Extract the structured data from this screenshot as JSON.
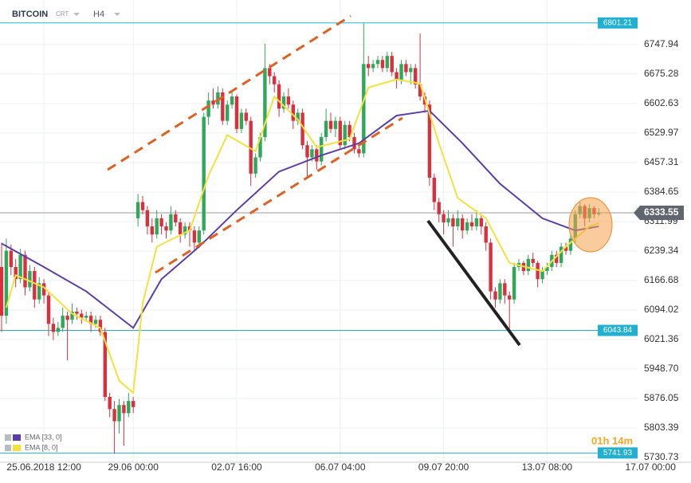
{
  "header": {
    "symbol": "BITCOIN",
    "type": "CRT",
    "timeframe": "H4"
  },
  "timer": "01h 14m",
  "chart_data": {
    "type": "candlestick",
    "xlim": [
      0,
      135.25
    ],
    "xticks": [
      {
        "value": 9,
        "label": "25.06.2018 12:00"
      },
      {
        "value": 28,
        "label": "29.06 00:00"
      },
      {
        "value": 50,
        "label": "02.07 16:00"
      },
      {
        "value": 72,
        "label": "06.07 04:00"
      },
      {
        "value": 94,
        "label": "09.07 20:00"
      },
      {
        "value": 116,
        "label": "13.07 08:00"
      },
      {
        "value": 138,
        "label": "17.07 00:00"
      }
    ],
    "ylim": [
      5719,
      6842
    ],
    "yticks": [
      6747.94,
      6675.28,
      6602.63,
      6529.97,
      6457.31,
      6384.65,
      6311.99,
      6239.34,
      6166.68,
      6094.02,
      6021.36,
      {
        "value": 5948.7,
        "label": "5948.70"
      },
      5876.05,
      5803.39,
      5730.73
    ],
    "grid": true,
    "up_color": "#2fa85a",
    "down_color": "#d9303e",
    "candles": [
      [
        6200,
        6260,
        6040,
        6080
      ],
      [
        6080,
        6270,
        6060,
        6240
      ],
      [
        6240,
        6255,
        6180,
        6200
      ],
      [
        6200,
        6220,
        6150,
        6170
      ],
      [
        6170,
        6245,
        6160,
        6230
      ],
      [
        6230,
        6240,
        6130,
        6150
      ],
      [
        6150,
        6205,
        6140,
        6190
      ],
      [
        6190,
        6200,
        6100,
        6120
      ],
      [
        6120,
        6175,
        6110,
        6160
      ],
      [
        6160,
        6170,
        6110,
        6130
      ],
      [
        6130,
        6140,
        6030,
        6060
      ],
      [
        6060,
        6075,
        6020,
        6040
      ],
      [
        6040,
        6065,
        6030,
        6050
      ],
      [
        6050,
        6100,
        6040,
        6080
      ],
      [
        6080,
        6090,
        5970,
        6070
      ],
      [
        6070,
        6110,
        6060,
        6090
      ],
      [
        6090,
        6100,
        6070,
        6085
      ],
      [
        6085,
        6095,
        6060,
        6075
      ],
      [
        6075,
        6090,
        6065,
        6080
      ],
      [
        6080,
        6090,
        6040,
        6060
      ],
      [
        6060,
        6080,
        6050,
        6070
      ],
      [
        6070,
        6080,
        6030,
        6040
      ],
      [
        6040,
        6050,
        5870,
        5880
      ],
      [
        5880,
        5890,
        5830,
        5850
      ],
      [
        5850,
        5870,
        5740,
        5820
      ],
      [
        5820,
        5875,
        5790,
        5860
      ],
      [
        5860,
        5870,
        5760,
        5840
      ],
      [
        5840,
        5890,
        5830,
        5870
      ],
      [
        5870,
        5880,
        5840,
        5855
      ],
      [
        6320,
        6380,
        6300,
        6360
      ],
      [
        6360,
        6375,
        6330,
        6340
      ],
      [
        6340,
        6350,
        6280,
        6300
      ],
      [
        6300,
        6320,
        6260,
        6280
      ],
      [
        6280,
        6340,
        6270,
        6320
      ],
      [
        6320,
        6330,
        6280,
        6300
      ],
      [
        6300,
        6310,
        6270,
        6290
      ],
      [
        6290,
        6350,
        6280,
        6330
      ],
      [
        6330,
        6340,
        6300,
        6310
      ],
      [
        6310,
        6320,
        6260,
        6280
      ],
      [
        6280,
        6310,
        6270,
        6300
      ],
      [
        6300,
        6310,
        6250,
        6290
      ],
      [
        6290,
        6300,
        6240,
        6260
      ],
      [
        6260,
        6300,
        6250,
        6290
      ],
      [
        6290,
        6580,
        6280,
        6570
      ],
      [
        6570,
        6630,
        6550,
        6610
      ],
      [
        6610,
        6640,
        6590,
        6600
      ],
      [
        6600,
        6645,
        6590,
        6630
      ],
      [
        6630,
        6640,
        6550,
        6560
      ],
      [
        6560,
        6610,
        6550,
        6600
      ],
      [
        6600,
        6630,
        6590,
        6620
      ],
      [
        6620,
        6625,
        6530,
        6540
      ],
      [
        6540,
        6590,
        6530,
        6580
      ],
      [
        6580,
        6590,
        6550,
        6560
      ],
      [
        6560,
        6570,
        6400,
        6430
      ],
      [
        6430,
        6480,
        6420,
        6470
      ],
      [
        6470,
        6530,
        6460,
        6520
      ],
      [
        6520,
        6750,
        6510,
        6690
      ],
      [
        6690,
        6700,
        6650,
        6670
      ],
      [
        6670,
        6680,
        6630,
        6650
      ],
      [
        6650,
        6660,
        6570,
        6590
      ],
      [
        6590,
        6630,
        6580,
        6620
      ],
      [
        6620,
        6640,
        6590,
        6600
      ],
      [
        6600,
        6610,
        6540,
        6560
      ],
      [
        6560,
        6590,
        6550,
        6580
      ],
      [
        6580,
        6590,
        6490,
        6500
      ],
      [
        6500,
        6510,
        6420,
        6470
      ],
      [
        6470,
        6500,
        6460,
        6490
      ],
      [
        6490,
        6500,
        6440,
        6460
      ],
      [
        6460,
        6530,
        6450,
        6520
      ],
      [
        6520,
        6590,
        6510,
        6560
      ],
      [
        6560,
        6580,
        6530,
        6540
      ],
      [
        6540,
        6570,
        6520,
        6560
      ],
      [
        6560,
        6570,
        6490,
        6500
      ],
      [
        6500,
        6560,
        6490,
        6550
      ],
      [
        6550,
        6560,
        6510,
        6520
      ],
      [
        6520,
        6530,
        6480,
        6490
      ],
      [
        6490,
        6500,
        6470,
        6480
      ],
      [
        6480,
        6800,
        6470,
        6700
      ],
      [
        6700,
        6720,
        6670,
        6690
      ],
      [
        6690,
        6710,
        6680,
        6700
      ],
      [
        6700,
        6720,
        6690,
        6710
      ],
      [
        6710,
        6720,
        6680,
        6690
      ],
      [
        6690,
        6730,
        6680,
        6720
      ],
      [
        6720,
        6730,
        6670,
        6680
      ],
      [
        6680,
        6690,
        6640,
        6660
      ],
      [
        6660,
        6710,
        6650,
        6700
      ],
      [
        6700,
        6710,
        6670,
        6680
      ],
      [
        6680,
        6700,
        6650,
        6690
      ],
      [
        6690,
        6700,
        6640,
        6650
      ],
      [
        6650,
        6775,
        6610,
        6620
      ],
      [
        6620,
        6630,
        6580,
        6600
      ],
      [
        6600,
        6610,
        6400,
        6420
      ],
      [
        6420,
        6430,
        6340,
        6360
      ],
      [
        6360,
        6370,
        6310,
        6330
      ],
      [
        6330,
        6340,
        6280,
        6310
      ],
      [
        6310,
        6340,
        6300,
        6320
      ],
      [
        6320,
        6330,
        6250,
        6300
      ],
      [
        6300,
        6340,
        6290,
        6320
      ],
      [
        6320,
        6330,
        6270,
        6290
      ],
      [
        6290,
        6320,
        6280,
        6310
      ],
      [
        6310,
        6330,
        6290,
        6300
      ],
      [
        6300,
        6340,
        6290,
        6320
      ],
      [
        6320,
        6330,
        6280,
        6300
      ],
      [
        6300,
        6310,
        6240,
        6260
      ],
      [
        6260,
        6270,
        6120,
        6140
      ],
      [
        6140,
        6150,
        6100,
        6120
      ],
      [
        6120,
        6170,
        6110,
        6160
      ],
      [
        6160,
        6170,
        6110,
        6130
      ],
      [
        6130,
        6140,
        6040,
        6120
      ],
      [
        6120,
        6210,
        6110,
        6200
      ],
      [
        6200,
        6220,
        6190,
        6210
      ],
      [
        6210,
        6215,
        6180,
        6190
      ],
      [
        6190,
        6230,
        6180,
        6220
      ],
      [
        6220,
        6235,
        6200,
        6210
      ],
      [
        6210,
        6215,
        6150,
        6170
      ],
      [
        6170,
        6200,
        6160,
        6190
      ],
      [
        6190,
        6210,
        6180,
        6200
      ],
      [
        6200,
        6240,
        6190,
        6230
      ],
      [
        6230,
        6240,
        6200,
        6210
      ],
      [
        6210,
        6260,
        6200,
        6250
      ],
      [
        6250,
        6260,
        6230,
        6240
      ],
      [
        6240,
        6280,
        6230,
        6270
      ],
      [
        6270,
        6340,
        6260,
        6330
      ],
      [
        6330,
        6360,
        6320,
        6350
      ],
      [
        6350,
        6355,
        6300,
        6320
      ],
      [
        6320,
        6355,
        6310,
        6345
      ],
      [
        6345,
        6350,
        6320,
        6330
      ],
      [
        6330,
        6345,
        6325,
        6333.55
      ]
    ],
    "series": [
      {
        "name": "EMA [33, 0]",
        "color": "#5b3fa8",
        "x": [
          0,
          9,
          18,
          28,
          34,
          42,
          50,
          59,
          68,
          76,
          84,
          91,
          98,
          106,
          115,
          122,
          127
        ],
        "values": [
          6258,
          6200,
          6140,
          6050,
          6170,
          6250,
          6340,
          6435,
          6475,
          6505,
          6573,
          6585,
          6505,
          6405,
          6320,
          6290,
          6300
        ]
      },
      {
        "name": "EMA [8, 0]",
        "color": "#f4e23c",
        "x": [
          1,
          3,
          9,
          15,
          21,
          25,
          28,
          30,
          33,
          40,
          44,
          48,
          54,
          58,
          63,
          67,
          74,
          78,
          84,
          89,
          93,
          97,
          103,
          108,
          115,
          120,
          125,
          127
        ],
        "values": [
          6100,
          6180,
          6150,
          6085,
          6050,
          5920,
          5890,
          6110,
          6250,
          6290,
          6425,
          6525,
          6485,
          6620,
          6563,
          6495,
          6515,
          6642,
          6662,
          6652,
          6505,
          6370,
          6320,
          6210,
          6190,
          6250,
          6300,
          6308
        ]
      }
    ],
    "price_lines": [
      6801.21,
      6043.84,
      5741.93
    ],
    "price_line_color": "#22b0d2",
    "last_price": 6333.55
  }
}
